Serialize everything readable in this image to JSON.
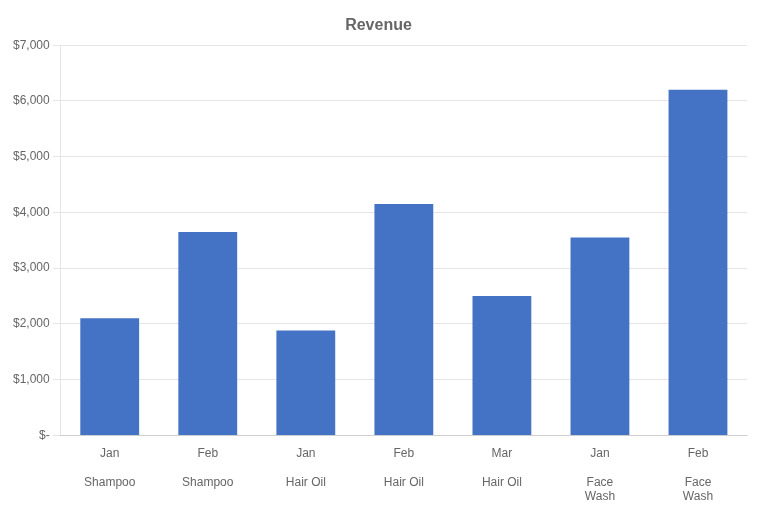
{
  "chart_data": {
    "type": "bar",
    "title": "Revenue",
    "categories": [
      "Jan\n\nShampoo",
      "Feb\n\nShampoo",
      "Jan\n\nHair Oil",
      "Feb\n\nHair Oil",
      "Mar\n\nHair Oil",
      "Jan\n\nFace\nWash",
      "Feb\n\nFace\nWash"
    ],
    "values": [
      2100,
      3650,
      1880,
      4150,
      2500,
      3550,
      6200
    ],
    "color": "#4472C4",
    "ylim": [
      0,
      7000
    ],
    "yticks": [
      {
        "value": 0,
        "label": "$-"
      },
      {
        "value": 1000,
        "label": "$1,000"
      },
      {
        "value": 2000,
        "label": "$2,000"
      },
      {
        "value": 3000,
        "label": "$3,000"
      },
      {
        "value": 4000,
        "label": "$4,000"
      },
      {
        "value": 5000,
        "label": "$5,000"
      },
      {
        "value": 6000,
        "label": "$6,000"
      },
      {
        "value": 7000,
        "label": "$7,000"
      }
    ],
    "grid": true
  }
}
